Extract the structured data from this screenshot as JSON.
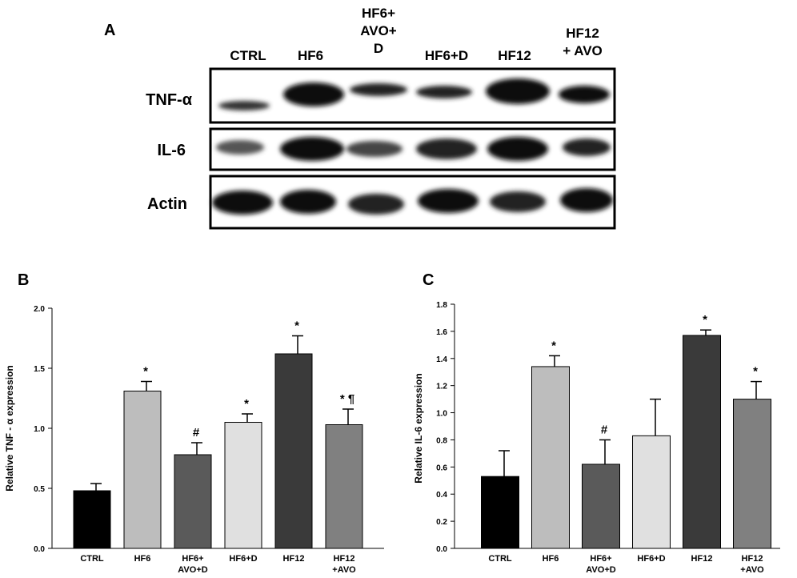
{
  "blot": {
    "panel": "A",
    "lanes": [
      "CTRL",
      "HF6",
      "HF6+\nAVO+\nD",
      "HF6+D",
      "HF12",
      "HF12\n+ AVO"
    ],
    "rows": [
      "TNF-α",
      "IL-6",
      "Actin"
    ]
  },
  "chart_data": [
    {
      "type": "bar",
      "panel": "B",
      "y_label": "Relative TNF - α expression",
      "categories": [
        "CTRL",
        "HF6",
        "HF6+\nAVO+D",
        "HF6+D",
        "HF12",
        "HF12\n+AVO"
      ],
      "values": [
        0.48,
        1.31,
        0.78,
        1.05,
        1.62,
        1.03
      ],
      "errors": [
        0.06,
        0.08,
        0.1,
        0.07,
        0.15,
        0.13
      ],
      "annotations": [
        null,
        "*",
        "#",
        "*",
        "*",
        "* ¶"
      ],
      "colors": [
        "#000000",
        "#bdbdbd",
        "#5a5a5a",
        "#e0e0e0",
        "#3a3a3a",
        "#808080"
      ],
      "ylim": [
        0,
        2.0
      ],
      "yticks": [
        {
          "value": 0,
          "label": "0.0"
        },
        0.5,
        {
          "value": 1,
          "label": "1.0"
        },
        1.5,
        {
          "value": 2,
          "label": "2.0"
        }
      ]
    },
    {
      "type": "bar",
      "panel": "C",
      "y_label": "Relative IL-6 expression",
      "categories": [
        "CTRL",
        "HF6",
        "HF6+\nAVO+D",
        "HF6+D",
        "HF12",
        "HF12\n+AVO"
      ],
      "values": [
        0.53,
        1.34,
        0.62,
        0.83,
        1.57,
        1.1
      ],
      "errors": [
        0.19,
        0.08,
        0.18,
        0.27,
        0.04,
        0.13
      ],
      "annotations": [
        null,
        "*",
        "#",
        null,
        "*",
        "*"
      ],
      "colors": [
        "#000000",
        "#bdbdbd",
        "#5a5a5a",
        "#e0e0e0",
        "#3a3a3a",
        "#808080"
      ],
      "ylim": [
        0,
        1.8
      ],
      "yticks": [
        {
          "value": 0,
          "label": "0.0"
        },
        0.2,
        0.4,
        0.6,
        0.8,
        {
          "value": 1,
          "label": "1.0"
        },
        1.2,
        1.4,
        1.6,
        1.8
      ]
    }
  ]
}
